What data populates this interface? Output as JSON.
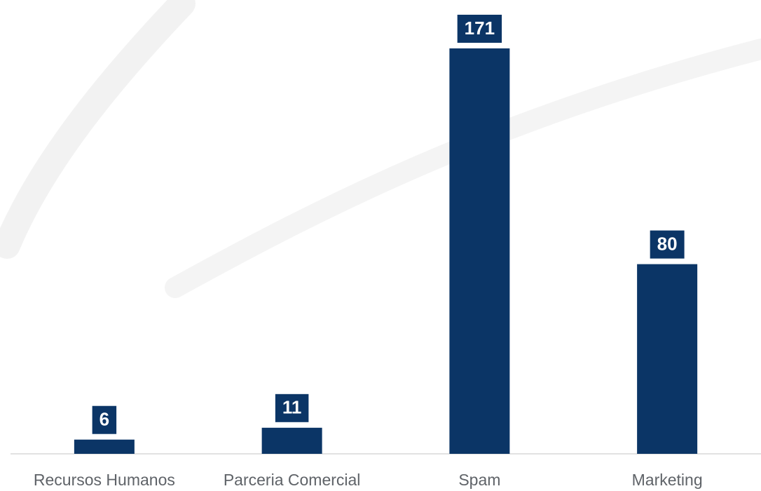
{
  "chart_data": {
    "type": "bar",
    "categories": [
      "Recursos Humanos",
      "Parceria Comercial",
      "Spam",
      "Marketing"
    ],
    "values": [
      6,
      11,
      171,
      80
    ],
    "color": "#0b3566"
  }
}
